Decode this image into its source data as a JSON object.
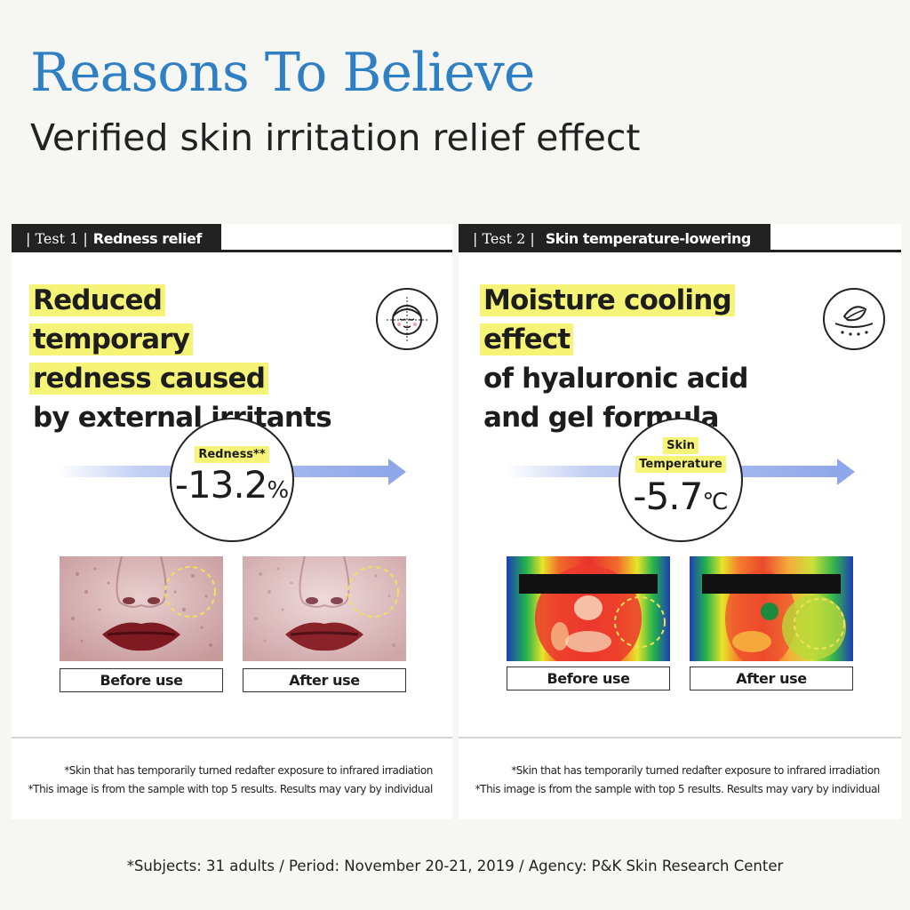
{
  "header": {
    "title": "Reasons To Believe",
    "subtitle": "Verified skin irritation relief effect"
  },
  "tests": [
    {
      "tab_test": "| Test 1 |",
      "tab_name": "Redness relief",
      "headline_highlight": [
        "Reduced",
        "temporary",
        "redness caused"
      ],
      "headline_plain": [
        "by external irritants"
      ],
      "icon": "face-grid-icon",
      "stat_label": "Redness**",
      "stat_value": "-13.2",
      "stat_unit": "%",
      "captions": [
        "Before use",
        "After use"
      ],
      "notes": [
        "*Skin that has temporarily turned redafter exposure to infrared irradiation",
        "*This image is from the sample with top 5 results. Results may vary by individual"
      ]
    },
    {
      "tab_test": "| Test 2 |",
      "tab_name": "Skin temperature-lowering",
      "headline_highlight": [
        "Moisture cooling",
        "effect"
      ],
      "headline_plain": [
        "of hyaluronic acid",
        "and gel formula"
      ],
      "icon": "leaf-cooling-icon",
      "stat_label": "Skin Temperature",
      "stat_label_lines": [
        "Skin",
        "Temperature"
      ],
      "stat_value": "-5.7",
      "stat_unit": "℃",
      "captions": [
        "Before use",
        "After use"
      ],
      "notes": [
        "*Skin that has temporarily turned redafter exposure to infrared irradiation",
        "*This image is from the sample with top 5 results. Results may vary by individual"
      ]
    }
  ],
  "footer": "*Subjects: 31 adults / Period: November 20-21, 2019 / Agency: P&K Skin Research Center",
  "colors": {
    "title": "#2f7fc4",
    "highlight": "#f6f477",
    "arrow": "#8fa7ea",
    "tab": "#222222"
  }
}
